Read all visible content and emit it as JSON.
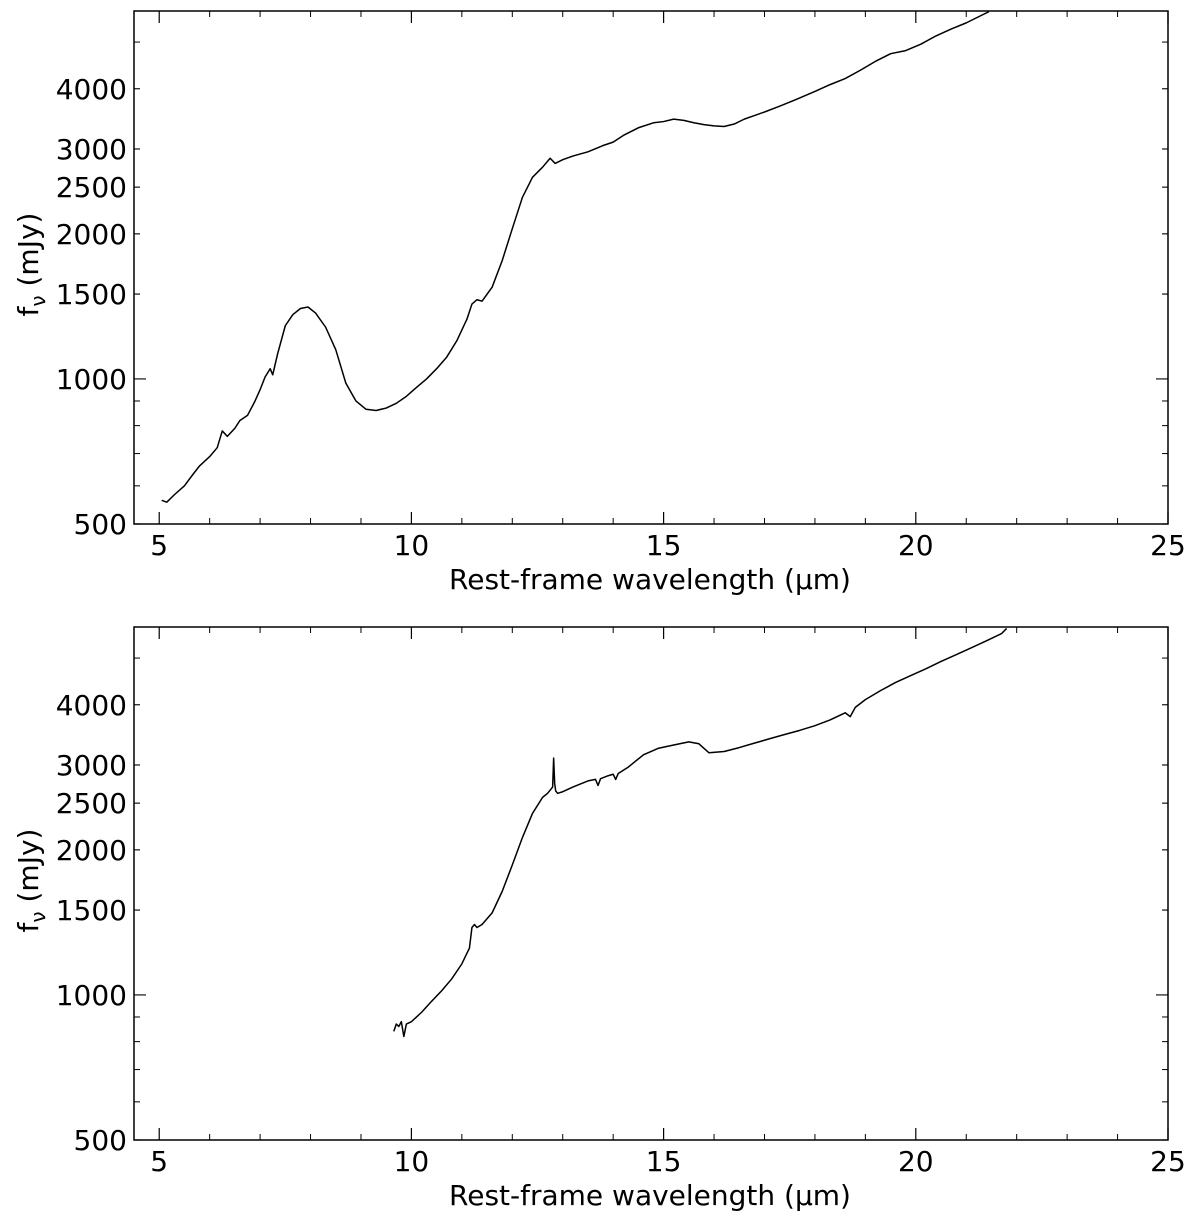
{
  "chart_data": [
    {
      "type": "line",
      "title": "",
      "xlabel": "Rest-frame wavelength (μm)",
      "ylabel_main": "f",
      "ylabel_sub": "ν",
      "ylabel_unit": " (mJy)",
      "xlim": [
        4.5,
        25
      ],
      "ylim": [
        500,
        5800
      ],
      "yscale": "log",
      "xticks": [
        5,
        10,
        15,
        20,
        25
      ],
      "xtick_labels": [
        "5",
        "10",
        "15",
        "20",
        "25"
      ],
      "yticks": [
        500,
        1000,
        1500,
        2000,
        2500,
        3000,
        4000
      ],
      "ytick_labels": [
        "500",
        "1000",
        "1500",
        "2000",
        "2500",
        "3000",
        "4000"
      ],
      "grid": false,
      "series": [
        {
          "color": "#000000",
          "x": [
            5.05,
            5.15,
            5.3,
            5.5,
            5.65,
            5.8,
            6.0,
            6.15,
            6.25,
            6.35,
            6.5,
            6.6,
            6.75,
            6.9,
            7.0,
            7.1,
            7.2,
            7.25,
            7.35,
            7.5,
            7.65,
            7.8,
            7.95,
            8.1,
            8.3,
            8.5,
            8.7,
            8.9,
            9.1,
            9.3,
            9.5,
            9.7,
            9.9,
            10.1,
            10.3,
            10.5,
            10.7,
            10.9,
            11.1,
            11.2,
            11.3,
            11.4,
            11.6,
            11.8,
            12.0,
            12.2,
            12.4,
            12.6,
            12.75,
            12.85,
            13.0,
            13.2,
            13.5,
            13.8,
            14.0,
            14.2,
            14.5,
            14.8,
            15.0,
            15.2,
            15.4,
            15.6,
            15.8,
            16.0,
            16.2,
            16.4,
            16.6,
            16.8,
            17.0,
            17.3,
            17.6,
            18.0,
            18.3,
            18.6,
            18.9,
            19.2,
            19.5,
            19.8,
            20.1,
            20.4,
            20.7,
            21.0,
            21.3,
            21.45
          ],
          "y": [
            560,
            555,
            575,
            600,
            630,
            660,
            690,
            720,
            780,
            760,
            790,
            820,
            840,
            900,
            950,
            1010,
            1050,
            1020,
            1130,
            1290,
            1360,
            1400,
            1410,
            1370,
            1280,
            1150,
            980,
            900,
            865,
            860,
            870,
            890,
            920,
            960,
            1000,
            1050,
            1110,
            1200,
            1330,
            1430,
            1460,
            1450,
            1550,
            1760,
            2050,
            2380,
            2620,
            2750,
            2870,
            2800,
            2850,
            2900,
            2960,
            3050,
            3100,
            3200,
            3320,
            3400,
            3420,
            3460,
            3440,
            3400,
            3370,
            3350,
            3340,
            3380,
            3460,
            3520,
            3580,
            3680,
            3790,
            3950,
            4080,
            4200,
            4370,
            4560,
            4730,
            4800,
            4950,
            5150,
            5320,
            5480,
            5680,
            5780
          ]
        }
      ]
    },
    {
      "type": "line",
      "title": "",
      "xlabel": "Rest-frame wavelength (μm)",
      "ylabel_main": "f",
      "ylabel_sub": "ν",
      "ylabel_unit": " (mJy)",
      "xlim": [
        4.5,
        25
      ],
      "ylim": [
        500,
        5800
      ],
      "yscale": "log",
      "xticks": [
        5,
        10,
        15,
        20,
        25
      ],
      "xtick_labels": [
        "5",
        "10",
        "15",
        "20",
        "25"
      ],
      "yticks": [
        500,
        1000,
        1500,
        2000,
        2500,
        3000,
        4000
      ],
      "ytick_labels": [
        "500",
        "1000",
        "1500",
        "2000",
        "2500",
        "3000",
        "4000"
      ],
      "grid": false,
      "series": [
        {
          "color": "#000000",
          "x": [
            9.65,
            9.7,
            9.75,
            9.8,
            9.85,
            9.9,
            10.0,
            10.2,
            10.4,
            10.6,
            10.8,
            11.0,
            11.1,
            11.15,
            11.2,
            11.25,
            11.3,
            11.4,
            11.6,
            11.8,
            12.0,
            12.2,
            12.4,
            12.6,
            12.7,
            12.75,
            12.8,
            12.82,
            12.84,
            12.86,
            12.9,
            13.0,
            13.2,
            13.5,
            13.65,
            13.7,
            13.75,
            13.9,
            14.0,
            14.05,
            14.1,
            14.3,
            14.6,
            14.9,
            15.2,
            15.5,
            15.7,
            15.9,
            16.2,
            16.5,
            16.8,
            17.1,
            17.4,
            17.7,
            18.0,
            18.3,
            18.6,
            18.7,
            18.8,
            19.0,
            19.3,
            19.6,
            19.9,
            20.2,
            20.5,
            20.8,
            21.1,
            21.4,
            21.7,
            21.8
          ],
          "y": [
            840,
            870,
            860,
            880,
            820,
            870,
            880,
            920,
            970,
            1020,
            1080,
            1160,
            1220,
            1250,
            1380,
            1400,
            1380,
            1400,
            1480,
            1640,
            1860,
            2120,
            2380,
            2570,
            2620,
            2660,
            2700,
            3100,
            2750,
            2650,
            2620,
            2640,
            2700,
            2780,
            2800,
            2720,
            2810,
            2850,
            2870,
            2800,
            2880,
            2970,
            3150,
            3250,
            3300,
            3350,
            3320,
            3180,
            3200,
            3260,
            3330,
            3400,
            3470,
            3540,
            3620,
            3720,
            3850,
            3780,
            3950,
            4100,
            4280,
            4450,
            4600,
            4750,
            4920,
            5080,
            5250,
            5430,
            5620,
            5760
          ]
        }
      ]
    }
  ]
}
